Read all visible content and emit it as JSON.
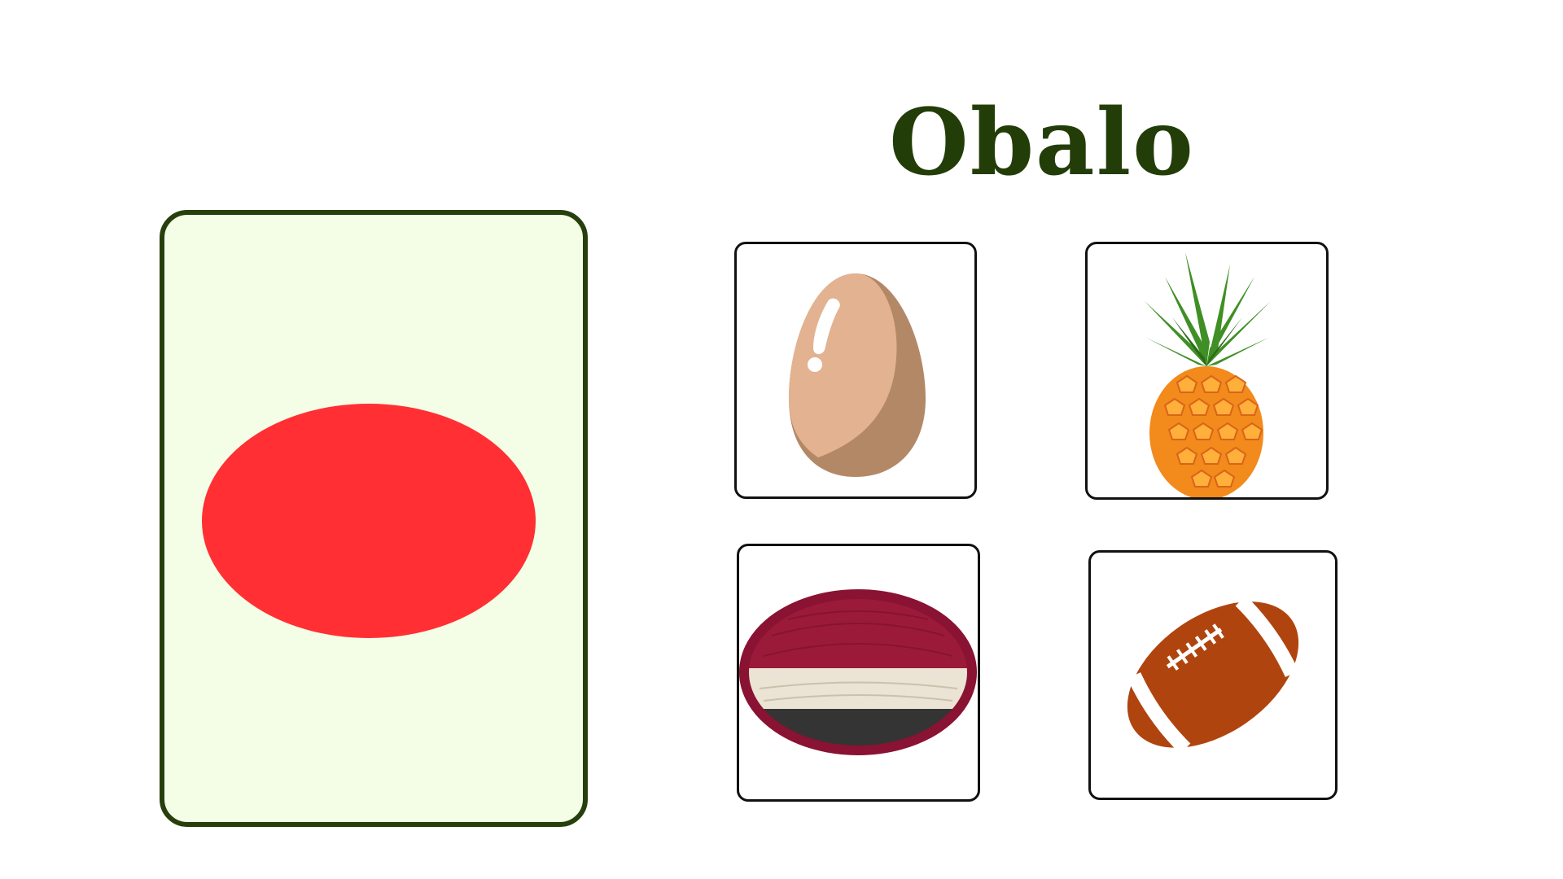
{
  "title": "Obalo",
  "target_shape": {
    "shape": "oval",
    "color": "#ff2f33",
    "card_background": "#f4fde6",
    "card_border": "#263f0c"
  },
  "options": [
    {
      "id": "egg",
      "icon": "egg-icon"
    },
    {
      "id": "pineapple",
      "icon": "pineapple-icon"
    },
    {
      "id": "cushion",
      "icon": "oval-cushion-icon"
    },
    {
      "id": "football",
      "icon": "american-football-icon"
    }
  ],
  "colors": {
    "title": "#233d08",
    "option_border": "#111111"
  }
}
